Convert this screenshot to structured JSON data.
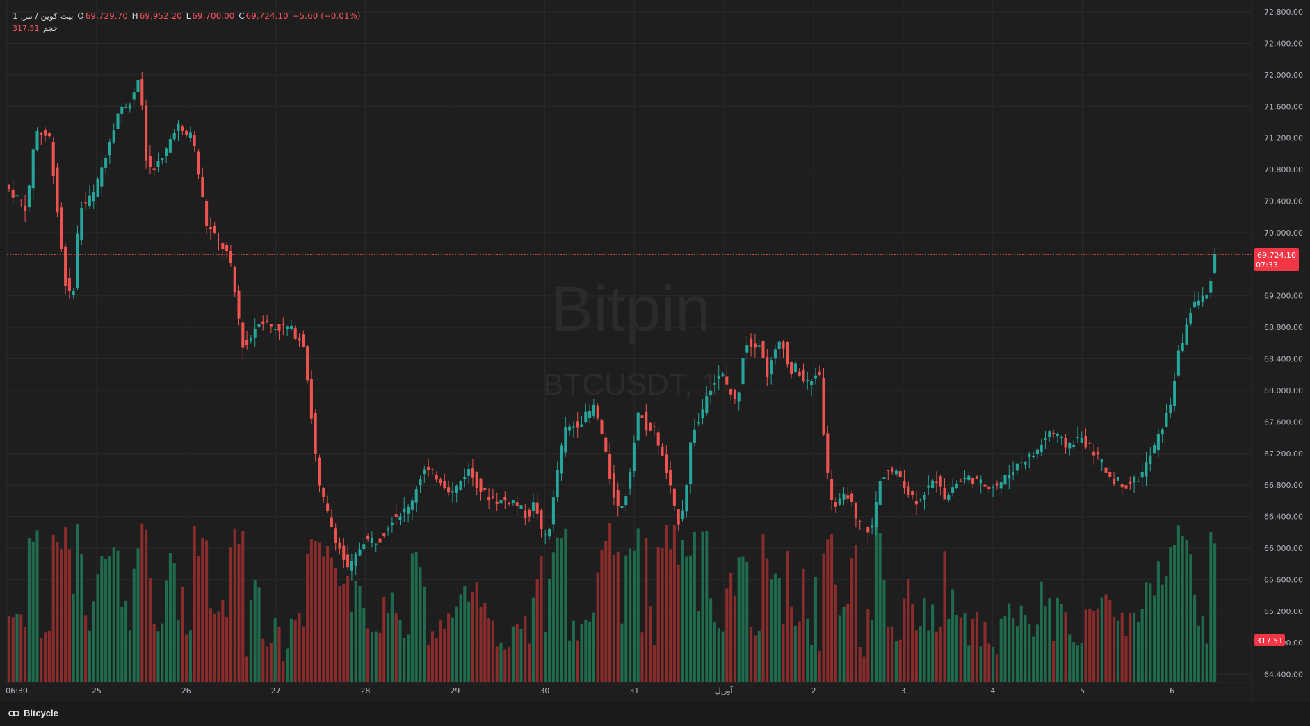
{
  "legend": {
    "symbol": "بیت کوین / تتر, 1",
    "o_label": "O",
    "o_value": "69,729.70",
    "h_label": "H",
    "h_value": "69,952.20",
    "l_label": "L",
    "l_value": "69,700.00",
    "c_label": "C",
    "c_value": "69,724.10",
    "change": "−5.60 (−0.01%)",
    "volume_label": "حجم",
    "volume_value": "317.51"
  },
  "watermark": {
    "title": "Bitpin",
    "subtitle": "BTCUSDT, 1"
  },
  "price_badge": {
    "price": "69,724.10",
    "countdown": "07:33"
  },
  "volume_badge": "317.51",
  "footer": {
    "brand": "Bitcycle",
    "brand_icon": "link-chain-icon"
  },
  "colors": {
    "up": "#26a69a",
    "down": "#ef5350",
    "up_vol": "#1f6b4e",
    "down_vol": "#8a2c2c",
    "background": "#1e1e1e",
    "grid": "#2a2a2a",
    "price_line": "#ef5350"
  },
  "chart_data": {
    "type": "candlestick",
    "symbol": "BTCUSDT",
    "y_axis": {
      "ticks": [
        "72,800.00",
        "72,400.00",
        "72,000.00",
        "71,600.00",
        "71,200.00",
        "70,800.00",
        "70,400.00",
        "70,000.00",
        "69,200.00",
        "68,800.00",
        "68,400.00",
        "68,000.00",
        "67,600.00",
        "67,200.00",
        "66,800.00",
        "66,400.00",
        "66,000.00",
        "65,600.00",
        "65,200.00",
        "64,800.00",
        "64,400.00"
      ],
      "tick_values": [
        72800,
        72400,
        72000,
        71600,
        71200,
        70800,
        70400,
        70000,
        69200,
        68800,
        68400,
        68000,
        67600,
        67200,
        66800,
        66400,
        66000,
        65600,
        65200,
        64800,
        64400
      ],
      "range": [
        64300,
        72950
      ]
    },
    "x_axis": {
      "ticks": [
        "06:30",
        "25",
        "26",
        "27",
        "28",
        "29",
        "30",
        "31",
        "آوریل",
        "2",
        "3",
        "4",
        "5",
        "6"
      ],
      "tick_positions": [
        0,
        12,
        24,
        36,
        48,
        60,
        72,
        84,
        96,
        108,
        120,
        132,
        144,
        156
      ],
      "range": [
        0,
        162
      ]
    },
    "current_price": 69724.1,
    "close_path": [
      [
        0,
        70600
      ],
      [
        3,
        70300
      ],
      [
        4,
        71300
      ],
      [
        6,
        71200
      ],
      [
        8,
        69400
      ],
      [
        9,
        69100
      ],
      [
        10,
        70300
      ],
      [
        12,
        70500
      ],
      [
        15,
        71500
      ],
      [
        17,
        71700
      ],
      [
        18,
        72000
      ],
      [
        19,
        70800
      ],
      [
        21,
        70900
      ],
      [
        23,
        71400
      ],
      [
        24,
        71200
      ],
      [
        25,
        71300
      ],
      [
        26,
        70700
      ],
      [
        27,
        70100
      ],
      [
        30,
        69700
      ],
      [
        32,
        68500
      ],
      [
        34,
        68900
      ],
      [
        36,
        68800
      ],
      [
        38,
        68800
      ],
      [
        40,
        68600
      ],
      [
        41,
        67700
      ],
      [
        42,
        66800
      ],
      [
        44,
        66200
      ],
      [
        46,
        65700
      ],
      [
        48,
        66100
      ],
      [
        50,
        66100
      ],
      [
        52,
        66400
      ],
      [
        54,
        66500
      ],
      [
        56,
        67000
      ],
      [
        58,
        66900
      ],
      [
        60,
        66700
      ],
      [
        62,
        67000
      ],
      [
        64,
        66700
      ],
      [
        66,
        66600
      ],
      [
        68,
        66600
      ],
      [
        70,
        66400
      ],
      [
        71,
        66600
      ],
      [
        72,
        66100
      ],
      [
        73,
        66300
      ],
      [
        74,
        67000
      ],
      [
        75,
        67500
      ],
      [
        77,
        67600
      ],
      [
        79,
        67800
      ],
      [
        80,
        67400
      ],
      [
        81,
        66900
      ],
      [
        82,
        66500
      ],
      [
        83,
        66600
      ],
      [
        85,
        67800
      ],
      [
        86,
        67500
      ],
      [
        87,
        67500
      ],
      [
        89,
        66800
      ],
      [
        90,
        66300
      ],
      [
        91,
        66600
      ],
      [
        92,
        67500
      ],
      [
        93,
        67600
      ],
      [
        94,
        68000
      ],
      [
        96,
        68200
      ],
      [
        98,
        67800
      ],
      [
        99,
        68600
      ],
      [
        101,
        68600
      ],
      [
        102,
        68200
      ],
      [
        104,
        68700
      ],
      [
        105,
        68200
      ],
      [
        106,
        68300
      ],
      [
        107,
        68100
      ],
      [
        108,
        68100
      ],
      [
        109,
        68300
      ],
      [
        110,
        67000
      ],
      [
        111,
        66500
      ],
      [
        113,
        66700
      ],
      [
        114,
        66300
      ],
      [
        115,
        66300
      ],
      [
        116,
        66200
      ],
      [
        117,
        66800
      ],
      [
        118,
        67000
      ],
      [
        120,
        66900
      ],
      [
        121,
        66700
      ],
      [
        122,
        66600
      ],
      [
        123,
        66700
      ],
      [
        125,
        66900
      ],
      [
        126,
        66600
      ],
      [
        127,
        66800
      ],
      [
        129,
        66900
      ],
      [
        131,
        66800
      ],
      [
        133,
        66800
      ],
      [
        134,
        66900
      ],
      [
        136,
        67100
      ],
      [
        138,
        67200
      ],
      [
        140,
        67500
      ],
      [
        142,
        67300
      ],
      [
        144,
        67400
      ],
      [
        145,
        67300
      ],
      [
        146,
        67200
      ],
      [
        148,
        66900
      ],
      [
        150,
        66800
      ],
      [
        152,
        66900
      ],
      [
        154,
        67300
      ],
      [
        156,
        67800
      ],
      [
        157,
        68400
      ],
      [
        159,
        69100
      ],
      [
        161,
        69200
      ],
      [
        162,
        69724
      ]
    ]
  }
}
